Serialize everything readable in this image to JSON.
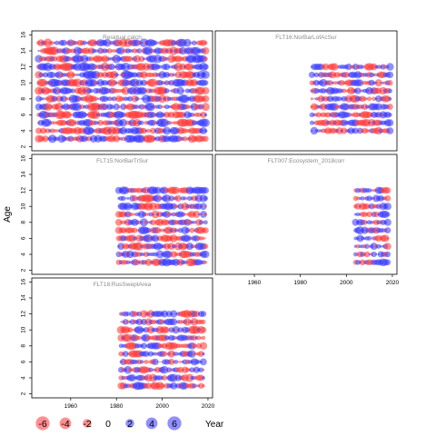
{
  "chart_data": {
    "type": "scatter",
    "ylabel": "Age",
    "xlabel": "Year",
    "xlim": [
      1943,
      2022
    ],
    "ylim": [
      1.5,
      16.5
    ],
    "x_ticks": [
      "1960",
      "1980",
      "2000",
      "2020"
    ],
    "y_ticks": [
      "2",
      "4",
      "6",
      "8",
      "10",
      "12",
      "14",
      "16"
    ],
    "colors": {
      "positive": "#3333ff",
      "negative": "#ff3333",
      "panel_title": "#8a8a8a"
    },
    "legend": {
      "items": [
        {
          "label": "-6",
          "value": -6
        },
        {
          "label": "-4",
          "value": -4
        },
        {
          "label": "-2",
          "value": -2
        },
        {
          "label": "0",
          "value": 0
        },
        {
          "label": "2",
          "value": 2
        },
        {
          "label": "4",
          "value": 4
        },
        {
          "label": "6",
          "value": 6
        }
      ]
    },
    "panels": [
      {
        "title": "Residual catch",
        "row": 0,
        "col": 0,
        "years": [
          1946,
          2019
        ],
        "ages": [
          3,
          15
        ],
        "seed": 11,
        "bias": 0.0,
        "amp": 3.2
      },
      {
        "title": "FLT16:NorBarLofAcSur",
        "row": 0,
        "col": 1,
        "years": [
          1985,
          2019
        ],
        "ages": [
          4,
          12
        ],
        "seed": 23,
        "bias": 0.05,
        "amp": 2.6
      },
      {
        "title": "FLT15:NorBarTrSur",
        "row": 1,
        "col": 0,
        "years": [
          1981,
          2019
        ],
        "ages": [
          3,
          12
        ],
        "seed": 37,
        "bias": 0.0,
        "amp": 2.9
      },
      {
        "title": "FLT007:Ecosystem_2018corr",
        "row": 1,
        "col": 1,
        "years": [
          2004,
          2018
        ],
        "ages": [
          3,
          12
        ],
        "seed": 51,
        "bias": 0.15,
        "amp": 2.4
      },
      {
        "title": "FLT18:RusSweptArea",
        "row": 2,
        "col": 0,
        "years": [
          1982,
          2018
        ],
        "ages": [
          3,
          12
        ],
        "seed": 67,
        "bias": 0.0,
        "amp": 2.8
      }
    ]
  }
}
